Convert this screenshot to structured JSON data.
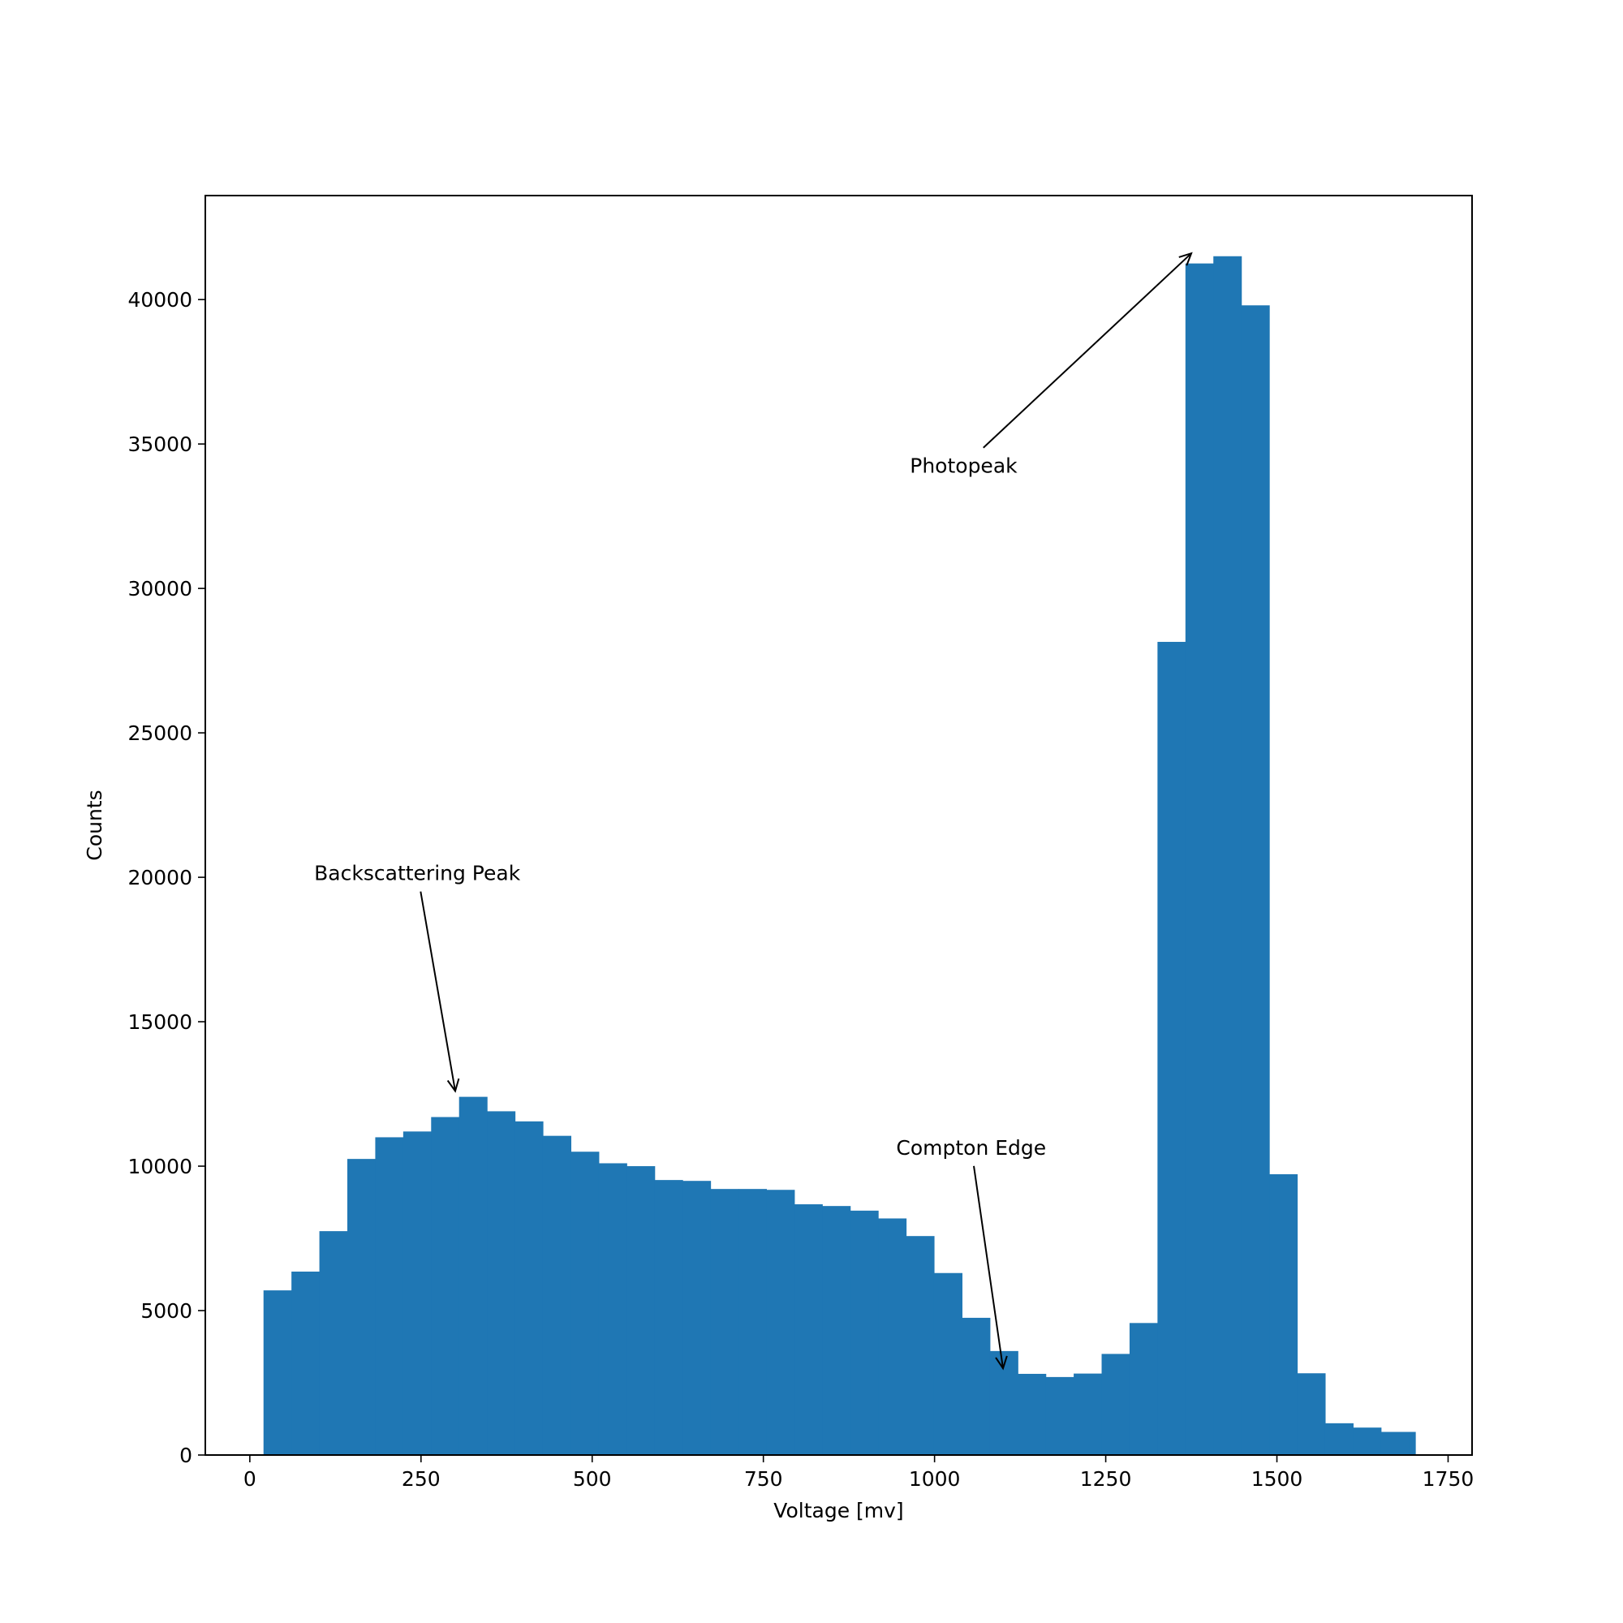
{
  "chart_data": {
    "type": "bar",
    "histogram": true,
    "bin_width": 40.8,
    "bin_starts": [
      20,
      60.8,
      101.6,
      142.4,
      183.2,
      224,
      264.8,
      305.6,
      346.4,
      387.2,
      428,
      468.8,
      509.6,
      550.4,
      591.2,
      632,
      672.8,
      713.6,
      754.4,
      795.2,
      836,
      876.8,
      917.6,
      958.4,
      999.2,
      1040,
      1080.8,
      1121.6,
      1162.4,
      1203.2,
      1244,
      1284.8,
      1325.6,
      1366.4,
      1407.2,
      1448,
      1488.8,
      1529.6,
      1570.4,
      1611.2,
      1652
    ],
    "values": [
      5700,
      6350,
      7750,
      10250,
      11000,
      11200,
      11700,
      12400,
      11900,
      11550,
      11050,
      10500,
      10100,
      10000,
      9520,
      9490,
      9210,
      9210,
      9180,
      8680,
      8620,
      8460,
      8190,
      7580,
      6300,
      4750,
      3600,
      2810,
      2700,
      2820,
      3500,
      4570,
      28150,
      41250,
      41500,
      39800,
      9720,
      2830,
      1100,
      950,
      800
    ],
    "extra_bar": {
      "start": 1692.8,
      "width": 10,
      "value": 800
    },
    "color": "#1f77b4",
    "xlabel": "Voltage [mv]",
    "ylabel": "Counts",
    "xlim": [
      -65,
      1785
    ],
    "ylim": [
      0,
      43600
    ],
    "xticks": [
      0,
      250,
      500,
      750,
      1000,
      1250,
      1500,
      1750
    ],
    "yticks": [
      0,
      5000,
      10000,
      15000,
      20000,
      25000,
      30000,
      35000,
      40000
    ],
    "annotations": [
      {
        "text": "Photopeak",
        "text_x": 964,
        "text_y": 34000,
        "arrow_to_x": 1375,
        "arrow_to_y": 41600
      },
      {
        "text": "Backscattering Peak",
        "text_x": 94,
        "text_y": 19900,
        "arrow_to_x": 300,
        "arrow_to_y": 12600
      },
      {
        "text": "Compton Edge",
        "text_x": 944,
        "text_y": 10400,
        "arrow_to_x": 1100,
        "arrow_to_y": 3000
      }
    ]
  }
}
